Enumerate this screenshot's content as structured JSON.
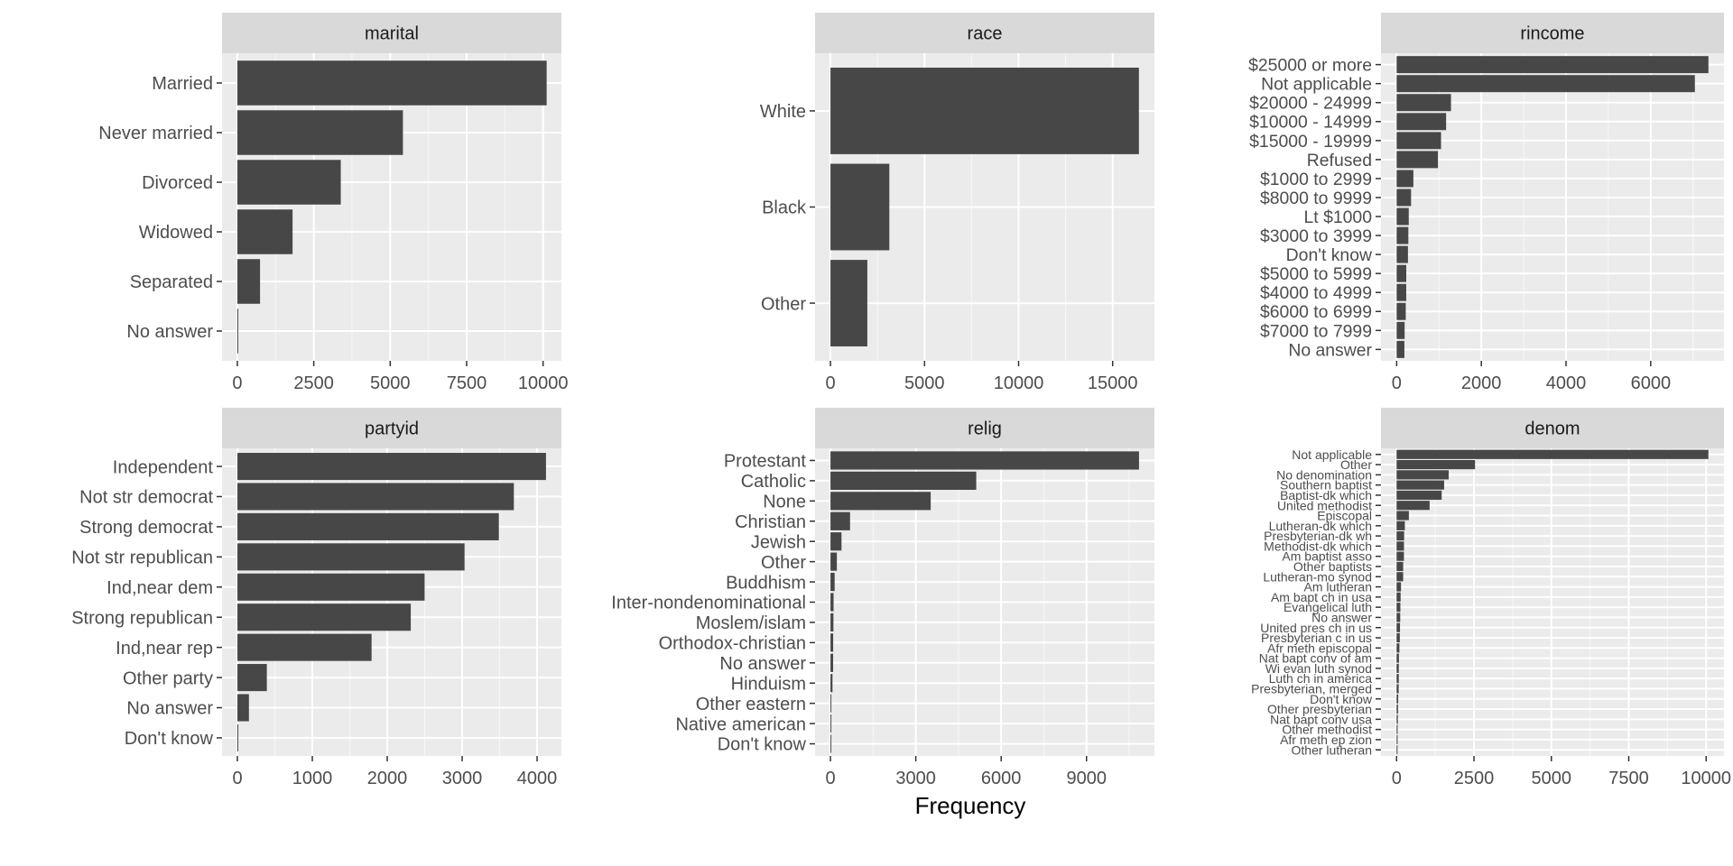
{
  "xlabel": "Frequency",
  "chart_data": [
    {
      "type": "bar",
      "orientation": "horizontal",
      "title": "marital",
      "categories": [
        "Married",
        "Never married",
        "Divorced",
        "Widowed",
        "Separated",
        "No answer"
      ],
      "values": [
        10117,
        5416,
        3383,
        1807,
        743,
        17
      ],
      "xlim": [
        -500,
        10600
      ],
      "xticks": [
        0,
        2500,
        5000,
        7500,
        10000
      ],
      "xtick_labels": [
        "0",
        "2500",
        "5000",
        "7500",
        "10000"
      ],
      "grid": true
    },
    {
      "type": "bar",
      "orientation": "horizontal",
      "title": "race",
      "categories": [
        "White",
        "Black",
        "Other"
      ],
      "values": [
        16395,
        3129,
        1959
      ],
      "xlim": [
        -820,
        17220
      ],
      "xticks": [
        0,
        5000,
        10000,
        15000
      ],
      "xtick_labels": [
        "0",
        "5000",
        "10000",
        "15000"
      ],
      "grid": true
    },
    {
      "type": "bar",
      "orientation": "horizontal",
      "title": "rincome",
      "categories": [
        "$25000 or more",
        "Not applicable",
        "$20000 - 24999",
        "$10000 - 14999",
        "$15000 - 19999",
        "Refused",
        "$1000 to 2999",
        "$8000 to 9999",
        "Lt $1000",
        "$3000 to 3999",
        "Don't know",
        "$5000 to 5999",
        "$4000 to 4999",
        "$6000 to 6999",
        "$7000 to 7999",
        "No answer"
      ],
      "values": [
        7363,
        7043,
        1283,
        1168,
        1048,
        975,
        395,
        340,
        286,
        276,
        267,
        227,
        226,
        215,
        188,
        183
      ],
      "xlim": [
        -370,
        7730
      ],
      "xticks": [
        0,
        2000,
        4000,
        6000
      ],
      "xtick_labels": [
        "0",
        "2000",
        "4000",
        "6000"
      ],
      "grid": true
    },
    {
      "type": "bar",
      "orientation": "horizontal",
      "title": "partyid",
      "categories": [
        "Independent",
        "Not str democrat",
        "Strong democrat",
        "Not str republican",
        "Ind,near dem",
        "Strong republican",
        "Ind,near rep",
        "Other party",
        "No answer",
        "Don't know"
      ],
      "values": [
        4119,
        3690,
        3490,
        3032,
        2499,
        2314,
        1791,
        393,
        154,
        1
      ],
      "xlim": [
        -205,
        4325
      ],
      "xticks": [
        0,
        1000,
        2000,
        3000,
        4000
      ],
      "xtick_labels": [
        "0",
        "1000",
        "2000",
        "3000",
        "4000"
      ],
      "grid": true
    },
    {
      "type": "bar",
      "orientation": "horizontal",
      "title": "relig",
      "categories": [
        "Protestant",
        "Catholic",
        "None",
        "Christian",
        "Jewish",
        "Other",
        "Buddhism",
        "Inter-nondenominational",
        "Moslem/islam",
        "Orthodox-christian",
        "No answer",
        "Hinduism",
        "Other eastern",
        "Native american",
        "Don't know"
      ],
      "values": [
        10846,
        5124,
        3523,
        689,
        388,
        224,
        147,
        109,
        104,
        95,
        93,
        71,
        32,
        23,
        15
      ],
      "xlim": [
        -542,
        11388
      ],
      "xticks": [
        0,
        3000,
        6000,
        9000
      ],
      "xtick_labels": [
        "0",
        "3000",
        "6000",
        "9000"
      ],
      "grid": true
    },
    {
      "type": "bar",
      "orientation": "horizontal",
      "title": "denom",
      "categories": [
        "Not applicable",
        "Other",
        "No denomination",
        "Southern baptist",
        "Baptist-dk which",
        "United methodist",
        "Episcopal",
        "Lutheran-dk which",
        "Presbyterian-dk wh",
        "Methodist-dk which",
        "Am baptist asso",
        "Other baptists",
        "Lutheran-mo synod",
        "Am lutheran",
        "Am bapt ch in usa",
        "Evangelical luth",
        "No answer",
        "United pres ch in us",
        "Presbyterian c in us",
        "Afr meth episcopal",
        "Nat bapt conv of am",
        "Wi evan luth synod",
        "Luth ch in america",
        "Presbyterian, merged",
        "Don't know",
        "Other presbyterian",
        "Nat bapt conv usa",
        "Other methodist",
        "Afr meth ep zion",
        "Other lutheran"
      ],
      "values": [
        10072,
        2534,
        1683,
        1536,
        1457,
        1067,
        397,
        267,
        244,
        239,
        237,
        213,
        212,
        142,
        130,
        122,
        117,
        110,
        104,
        91,
        76,
        71,
        71,
        67,
        52,
        47,
        40,
        33,
        32,
        30
      ],
      "xlim": [
        -504,
        10576
      ],
      "xticks": [
        0,
        2500,
        5000,
        7500,
        10000
      ],
      "xtick_labels": [
        "0",
        "2500",
        "5000",
        "7500",
        "10000"
      ],
      "grid": true
    }
  ]
}
